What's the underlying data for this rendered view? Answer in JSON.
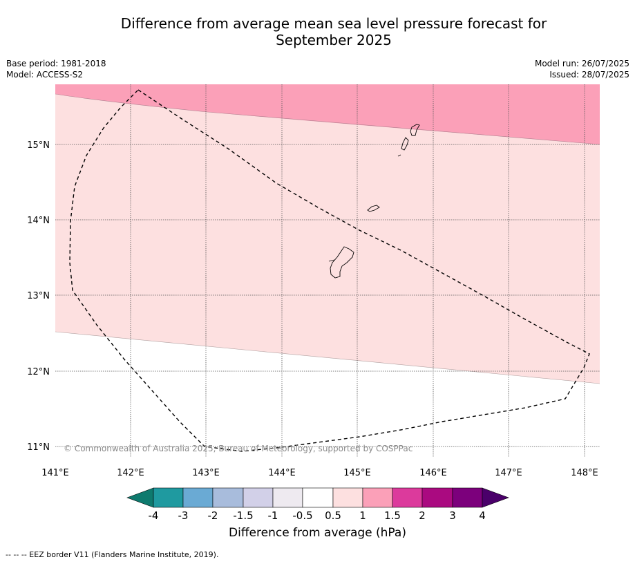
{
  "title_line1": "Difference from average mean sea level pressure forecast for",
  "title_line2": "September 2025",
  "meta_left": {
    "base_period": "Base period: 1981-2018",
    "model": "Model: ACCESS-S2"
  },
  "meta_right": {
    "model_run": "Model run: 26/07/2025",
    "issued": "Issued: 28/07/2025"
  },
  "copyright": "© Commonwealth of Australia 2025, Bureau of Meteorology, supported by COSPPac",
  "latitude_labels": [
    "15°N",
    "14°N",
    "13°N",
    "12°N",
    "11°N"
  ],
  "longitude_labels": [
    "141°E",
    "142°E",
    "143°E",
    "144°E",
    "145°E",
    "146°E",
    "147°E",
    "148°E"
  ],
  "colorbar": {
    "title": "Difference from average (hPa)",
    "tick_labels": [
      "-4",
      "-3",
      "-2",
      "-1.5",
      "-1",
      "-0.5",
      "0.5",
      "1",
      "1.5",
      "2",
      "3",
      "4"
    ],
    "colors": [
      "#0e7a6e",
      "#1f9aa0",
      "#6aaad4",
      "#a8bcdc",
      "#d2d0e8",
      "#eeeaf0",
      "#ffffff",
      "#fde0e0",
      "#fba0b8",
      "#dc3a9c",
      "#aa0a80",
      "#7c007c",
      "#4a006a"
    ]
  },
  "map_regions": [
    {
      "band": "1 to 1.5 hPa",
      "color": "#fba0b8"
    },
    {
      "band": "0.5 to 1 hPa",
      "color": "#fde0e0"
    },
    {
      "band": "-0.5 to 0.5 hPa",
      "color": "#ffffff"
    }
  ],
  "legend_note": "--  --  -- EEZ border V11 (Flanders Marine Institute, 2019)."
}
